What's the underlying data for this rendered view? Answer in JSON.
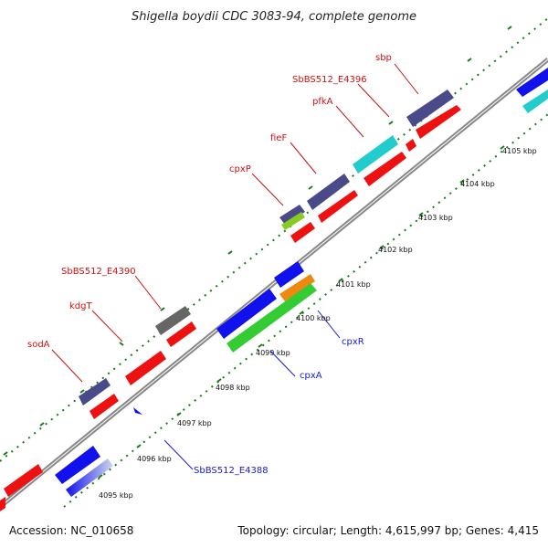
{
  "title": "Shigella boydii CDC 3083-94, complete genome",
  "footer": {
    "accession": "Accession: NC_010658",
    "topology": "Topology: circular; Length: 4,615,997 bp; Genes: 4,415"
  },
  "scale_labels": [
    "4095 kbp",
    "4096 kbp",
    "4097 kbp",
    "4098 kbp",
    "4099 kbp",
    "4100 kbp",
    "4101 kbp",
    "4102 kbp",
    "4103 kbp",
    "4104 kbp",
    "4105 kbp"
  ],
  "gene_labels": [
    {
      "name": "sbp",
      "color": "red"
    },
    {
      "name": "SbBS512_E4396",
      "color": "red"
    },
    {
      "name": "pfkA",
      "color": "red"
    },
    {
      "name": "fieF",
      "color": "red"
    },
    {
      "name": "cpxP",
      "color": "red"
    },
    {
      "name": "SbBS512_E4390",
      "color": "red"
    },
    {
      "name": "kdgT",
      "color": "red"
    },
    {
      "name": "sodA",
      "color": "red"
    },
    {
      "name": "cpxR",
      "color": "blue"
    },
    {
      "name": "cpxA",
      "color": "blue"
    },
    {
      "name": "SbBS512_E4388",
      "color": "blue"
    }
  ],
  "colors": {
    "forward": "#ee1111",
    "forward_other": "#4a4a8a",
    "reverse": "#1111ee",
    "cyan": "#22cccc",
    "green": "#33cc33",
    "orange": "#ee8811",
    "grey": "#666666",
    "backbone": "#888888",
    "tick": "#1a7a1a"
  }
}
